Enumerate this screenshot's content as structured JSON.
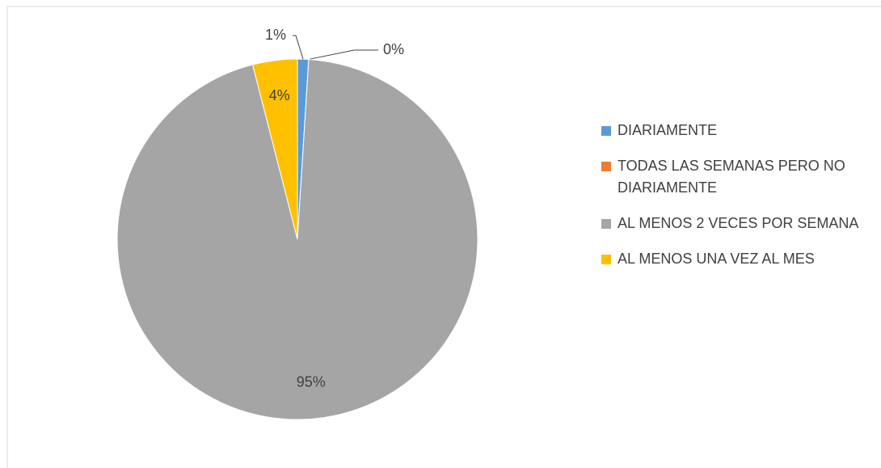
{
  "chart_data": {
    "type": "pie",
    "categories": [
      "DIARIAMENTE",
      "TODAS LAS SEMANAS PERO NO DIARIAMENTE",
      "AL MENOS 2 VECES POR SEMANA",
      "AL MENOS UNA VEZ AL MES"
    ],
    "values": [
      1,
      0,
      95,
      4
    ],
    "value_labels": [
      "1%",
      "0%",
      "95%",
      "4%"
    ],
    "colors": [
      "#5b9bd5",
      "#ed7d31",
      "#a5a5a5",
      "#ffc000"
    ],
    "legend": "right"
  }
}
